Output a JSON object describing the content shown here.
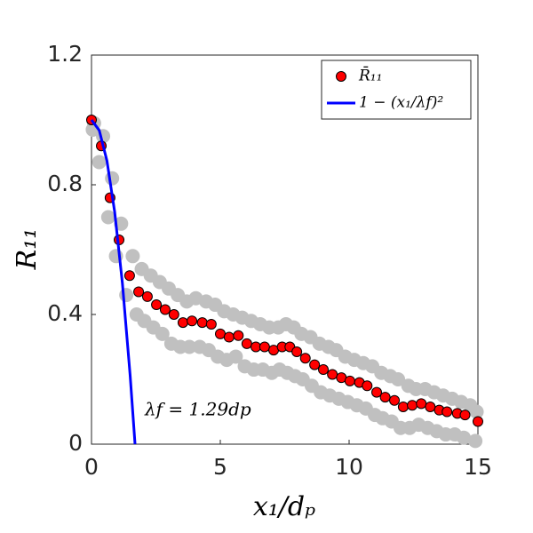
{
  "chart_data": {
    "type": "scatter",
    "xlabel": "x₁/dₚ",
    "ylabel": "R₁₁",
    "xlim": [
      0,
      15
    ],
    "xticks": [
      0,
      5,
      10,
      15
    ],
    "ylim": [
      0,
      1.2
    ],
    "yticks": [
      0,
      0.4,
      0.8,
      1.2
    ],
    "legend": "upper right",
    "annotation": "λf = 1.29dp",
    "samples": [
      {
        "color": "#c0c0c0",
        "x": [
          0.1,
          0.45,
          0.8,
          1.15,
          1.6,
          1.95,
          2.3,
          2.65,
          3.0,
          3.35,
          3.7,
          4.05,
          4.45,
          4.8,
          5.15,
          5.5,
          5.85,
          6.2,
          6.55,
          6.9,
          7.25,
          7.55,
          7.85,
          8.15,
          8.5,
          8.85,
          9.2,
          9.5,
          9.85,
          10.2,
          10.55,
          10.9,
          11.25,
          11.6,
          11.9,
          12.3,
          12.6,
          12.95,
          13.3,
          13.65,
          14.0,
          14.35,
          14.7,
          14.95
        ],
        "values": [
          0.99,
          0.95,
          0.82,
          0.68,
          0.58,
          0.54,
          0.52,
          0.5,
          0.48,
          0.46,
          0.44,
          0.45,
          0.44,
          0.43,
          0.41,
          0.4,
          0.39,
          0.38,
          0.37,
          0.36,
          0.36,
          0.37,
          0.36,
          0.34,
          0.33,
          0.31,
          0.3,
          0.29,
          0.27,
          0.26,
          0.25,
          0.24,
          0.22,
          0.21,
          0.2,
          0.18,
          0.17,
          0.17,
          0.16,
          0.15,
          0.14,
          0.13,
          0.12,
          0.1
        ]
      },
      {
        "color": "#c0c0c0",
        "x": [
          0.05,
          0.3,
          0.65,
          0.95,
          1.35,
          1.75,
          2.05,
          2.4,
          2.75,
          3.1,
          3.45,
          3.8,
          4.2,
          4.55,
          4.9,
          5.25,
          5.6,
          5.95,
          6.3,
          6.65,
          7.0,
          7.3,
          7.6,
          7.9,
          8.2,
          8.55,
          8.9,
          9.25,
          9.6,
          9.95,
          10.3,
          10.65,
          11.0,
          11.3,
          11.65,
          12.0,
          12.35,
          12.7,
          13.05,
          13.4,
          13.75,
          14.1,
          14.45,
          14.9
        ],
        "values": [
          0.97,
          0.87,
          0.7,
          0.58,
          0.46,
          0.4,
          0.38,
          0.36,
          0.34,
          0.31,
          0.3,
          0.3,
          0.3,
          0.29,
          0.27,
          0.26,
          0.27,
          0.24,
          0.23,
          0.23,
          0.22,
          0.23,
          0.22,
          0.21,
          0.2,
          0.18,
          0.16,
          0.15,
          0.14,
          0.13,
          0.12,
          0.11,
          0.09,
          0.08,
          0.07,
          0.05,
          0.05,
          0.06,
          0.05,
          0.04,
          0.03,
          0.03,
          0.02,
          0.01
        ]
      }
    ],
    "series": [
      {
        "name": "R̄₁₁",
        "color": "#ff0000",
        "style": "marker",
        "x": [
          0,
          0.38,
          0.72,
          1.07,
          1.48,
          1.83,
          2.17,
          2.52,
          2.86,
          3.2,
          3.55,
          3.9,
          4.3,
          4.65,
          5.0,
          5.34,
          5.7,
          6.03,
          6.38,
          6.72,
          7.07,
          7.4,
          7.7,
          7.97,
          8.3,
          8.66,
          9.0,
          9.35,
          9.7,
          10.03,
          10.4,
          10.7,
          11.07,
          11.4,
          11.76,
          12.1,
          12.45,
          12.8,
          13.15,
          13.5,
          13.8,
          14.2,
          14.5,
          15
        ],
        "values": [
          1.0,
          0.92,
          0.76,
          0.63,
          0.52,
          0.47,
          0.455,
          0.43,
          0.415,
          0.4,
          0.375,
          0.38,
          0.375,
          0.37,
          0.34,
          0.33,
          0.335,
          0.31,
          0.3,
          0.3,
          0.29,
          0.3,
          0.3,
          0.285,
          0.265,
          0.245,
          0.23,
          0.215,
          0.205,
          0.195,
          0.19,
          0.18,
          0.16,
          0.145,
          0.135,
          0.115,
          0.12,
          0.125,
          0.115,
          0.105,
          0.1,
          0.095,
          0.09,
          0.07
        ]
      },
      {
        "name": "1 − (x₁/λf)²",
        "color": "#0000ff",
        "style": "line",
        "x": [
          0,
          0.3,
          0.6,
          0.9,
          1.2,
          1.5,
          1.69
        ],
        "values": [
          1,
          0.968,
          0.874,
          0.716,
          0.496,
          0.212,
          0
        ]
      }
    ]
  }
}
